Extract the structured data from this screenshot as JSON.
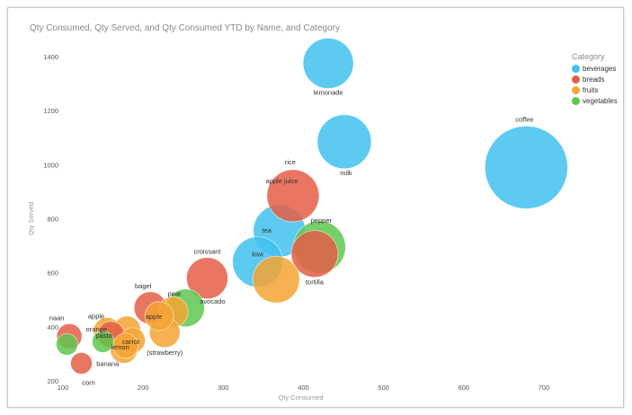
{
  "chart_data": {
    "type": "scatter",
    "subtype": "bubble",
    "title": "Qty Consumed, Qty Served, and Qty Consumed YTD by Name, and Category",
    "xlabel": "Qty Consumed",
    "ylabel": "Qty Served",
    "xlim": [
      100,
      700
    ],
    "ylim": [
      200,
      1400
    ],
    "x_ticks": [
      "100",
      "200",
      "300",
      "400",
      "500",
      "600",
      "700"
    ],
    "y_ticks": [
      "200",
      "400",
      "600",
      "800",
      "1000",
      "1200",
      "1400"
    ],
    "grid": false,
    "legend": {
      "title": "Category",
      "position": "top-right",
      "entries": [
        {
          "name": "beverages",
          "color": "#41c1ee"
        },
        {
          "name": "breads",
          "color": "#e45e47"
        },
        {
          "name": "fruits",
          "color": "#f4a532"
        },
        {
          "name": "vegetables",
          "color": "#5fc74f"
        }
      ]
    },
    "points": [
      {
        "label": "coffee",
        "category": "beverages",
        "x": 678,
        "y": 990,
        "size": 4.6
      },
      {
        "label": "lemonade",
        "category": "beverages",
        "x": 431,
        "y": 1375,
        "size": 2.8
      },
      {
        "label": "milk",
        "category": "beverages",
        "x": 451,
        "y": 1085,
        "size": 3.0
      },
      {
        "label": "tea",
        "category": "beverages",
        "x": 370,
        "y": 755,
        "size": 2.9
      },
      {
        "label": "kiwi",
        "category": "beverages",
        "x": 343,
        "y": 640,
        "size": 2.8
      },
      {
        "label": "rice",
        "category": "breads",
        "x": 387,
        "y": 885,
        "size": 2.9
      },
      {
        "label": "apple juice",
        "category": "breads",
        "x": 382,
        "y": 885,
        "size": 0
      },
      {
        "label": "croissant",
        "category": "breads",
        "x": 280,
        "y": 580,
        "size": 2.3
      },
      {
        "label": "pepper",
        "category": "vegetables",
        "x": 420,
        "y": 695,
        "size": 2.9
      },
      {
        "label": "tortilla",
        "category": "breads",
        "x": 414,
        "y": 670,
        "size": 2.6
      },
      {
        "label": "",
        "category": "fruits",
        "x": 366,
        "y": 575,
        "size": 2.6
      },
      {
        "label": "avocado",
        "category": "vegetables",
        "x": 253,
        "y": 470,
        "size": 2.1
      },
      {
        "label": "pear",
        "category": "fruits",
        "x": 237,
        "y": 455,
        "size": 1.7
      },
      {
        "label": "bagel",
        "category": "breads",
        "x": 209,
        "y": 470,
        "size": 1.8
      },
      {
        "label": "apple",
        "category": "fruits",
        "x": 220,
        "y": 440,
        "size": 1.6
      },
      {
        "label": "(strawberry)",
        "category": "fruits",
        "x": 227,
        "y": 380,
        "size": 1.7
      },
      {
        "label": "naan",
        "category": "breads",
        "x": 108,
        "y": 365,
        "size": 1.4
      },
      {
        "label": "",
        "category": "vegetables",
        "x": 105,
        "y": 335,
        "size": 1.2
      },
      {
        "label": "corn",
        "category": "breads",
        "x": 123,
        "y": 265,
        "size": 1.2
      },
      {
        "label": "apple",
        "category": "fruits",
        "x": 155,
        "y": 385,
        "size": 1.5
      },
      {
        "label": "orange",
        "category": "fruits",
        "x": 180,
        "y": 390,
        "size": 1.5
      },
      {
        "label": "pasta",
        "category": "breads",
        "x": 160,
        "y": 370,
        "size": 1.5
      },
      {
        "label": "carrot",
        "category": "fruits",
        "x": 187,
        "y": 350,
        "size": 1.4
      },
      {
        "label": "lemon",
        "category": "fruits",
        "x": 178,
        "y": 330,
        "size": 1.4
      },
      {
        "label": "banana",
        "category": "fruits",
        "x": 176,
        "y": 315,
        "size": 1.5
      },
      {
        "label": "",
        "category": "vegetables",
        "x": 150,
        "y": 345,
        "size": 1.2
      }
    ]
  }
}
